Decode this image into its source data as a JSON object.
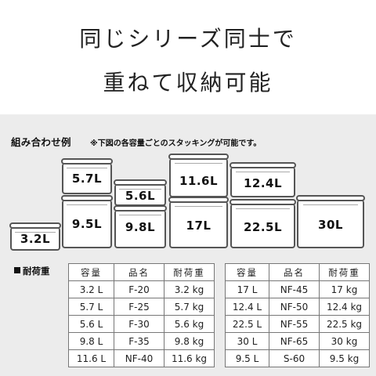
{
  "headline": {
    "line1": "同じシリーズ同士で",
    "line2": "重ねて収納可能"
  },
  "example": {
    "title": "組み合わせ例",
    "note": "※下図の各容量ごとのスタッキングが可能です。"
  },
  "containers": [
    "3.2L",
    "5.7L",
    "9.5L",
    "5.6L",
    "9.8L",
    "11.6L",
    "17L",
    "12.4L",
    "22.5L",
    "30L"
  ],
  "table": {
    "title": "耐荷重",
    "headers": [
      "容量",
      "品名",
      "耐荷重"
    ],
    "left_rows": [
      [
        "3.2 L",
        "F-20",
        "3.2 kg"
      ],
      [
        "5.7 L",
        "F-25",
        "5.7 kg"
      ],
      [
        "5.6 L",
        "F-30",
        "5.6 kg"
      ],
      [
        "9.8 L",
        "F-35",
        "9.8 kg"
      ],
      [
        "11.6 L",
        "NF-40",
        "11.6 kg"
      ]
    ],
    "right_rows": [
      [
        "17 L",
        "NF-45",
        "17 kg"
      ],
      [
        "12.4 L",
        "NF-50",
        "12.4 kg"
      ],
      [
        "22.5 L",
        "NF-55",
        "22.5 kg"
      ],
      [
        "30 L",
        "NF-65",
        "30 kg"
      ],
      [
        "9.5 L",
        "S-60",
        "9.5 kg"
      ]
    ]
  }
}
